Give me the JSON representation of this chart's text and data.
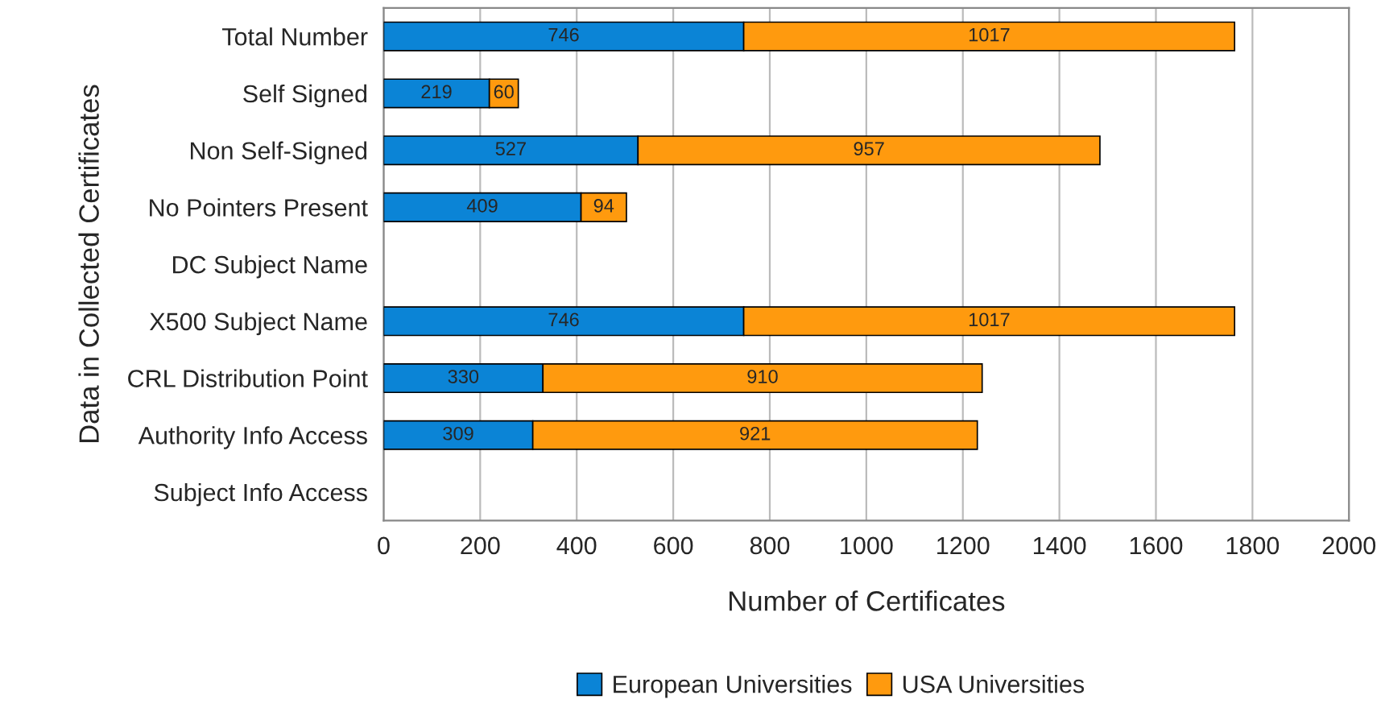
{
  "chart_data": {
    "type": "bar",
    "orientation": "horizontal",
    "stacked": true,
    "xlabel": "Number of Certificates",
    "ylabel": "Data in Collected Certificates",
    "categories": [
      "Total Number",
      "Self Signed",
      "Non Self-Signed",
      "No Pointers Present",
      "DC Subject Name",
      "X500 Subject Name",
      "CRL Distribution Point",
      "Authority Info Access",
      "Subject Info Access"
    ],
    "series": [
      {
        "name": "European Universities",
        "color": "#0b84d6",
        "values": [
          746,
          219,
          527,
          409,
          null,
          746,
          330,
          309,
          null
        ]
      },
      {
        "name": "USA Universities",
        "color": "#ff9a0e",
        "values": [
          1017,
          60,
          957,
          94,
          null,
          1017,
          910,
          921,
          null
        ]
      }
    ],
    "xlim": [
      0,
      2000
    ],
    "xticks": [
      0,
      200,
      400,
      600,
      800,
      1000,
      1200,
      1400,
      1600,
      1800,
      2000
    ],
    "grid": "x",
    "legend": "bottom",
    "data_labels": true
  }
}
